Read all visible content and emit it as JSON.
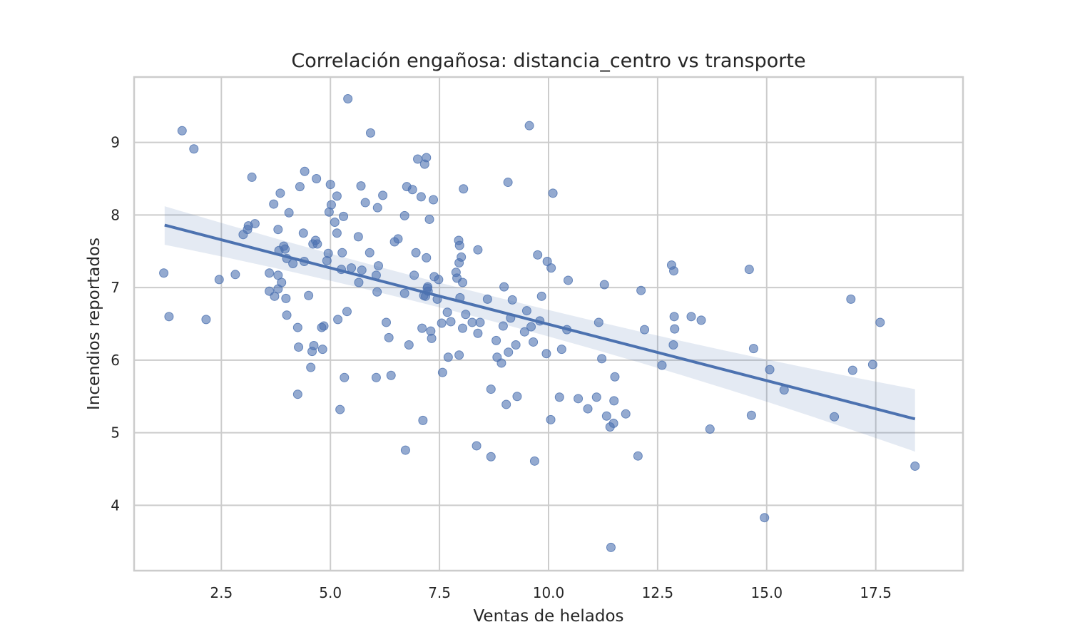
{
  "chart_data": {
    "type": "scatter",
    "title": "Correlación engañosa: distancia_centro vs transporte",
    "xlabel": "Ventas de helados",
    "ylabel": "Incendios reportados",
    "xlim": [
      0.5,
      19.5
    ],
    "ylim": [
      3.1,
      9.9
    ],
    "x_ticks": [
      2.5,
      5.0,
      7.5,
      10.0,
      12.5,
      15.0,
      17.5
    ],
    "x_tick_labels": [
      "2.5",
      "5.0",
      "7.5",
      "10.0",
      "12.5",
      "15.0",
      "17.5"
    ],
    "y_ticks": [
      4,
      5,
      6,
      7,
      8,
      9
    ],
    "y_tick_labels": [
      "4",
      "5",
      "6",
      "7",
      "8",
      "9"
    ],
    "grid": true,
    "color": "#4c72b0",
    "regression": {
      "x": [
        1.2,
        18.4
      ],
      "y": [
        7.86,
        5.19
      ],
      "ci_lower": [
        7.59,
        4.74
      ],
      "ci_upper": [
        8.12,
        5.6
      ],
      "ci_mid": {
        "x": 9.8,
        "lower": 6.36,
        "upper": 6.72
      }
    },
    "points": [
      [
        1.6,
        9.16
      ],
      [
        1.87,
        8.91
      ],
      [
        1.18,
        7.2
      ],
      [
        1.3,
        6.6
      ],
      [
        2.15,
        6.56
      ],
      [
        2.45,
        7.11
      ],
      [
        2.82,
        7.18
      ],
      [
        3.0,
        7.73
      ],
      [
        3.1,
        7.8
      ],
      [
        3.12,
        7.85
      ],
      [
        3.2,
        8.52
      ],
      [
        3.27,
        7.88
      ],
      [
        3.6,
        7.2
      ],
      [
        3.6,
        6.95
      ],
      [
        3.7,
        8.15
      ],
      [
        3.72,
        6.88
      ],
      [
        3.8,
        7.8
      ],
      [
        3.8,
        6.98
      ],
      [
        3.8,
        7.17
      ],
      [
        3.82,
        7.51
      ],
      [
        3.85,
        8.3
      ],
      [
        3.88,
        7.07
      ],
      [
        3.93,
        7.57
      ],
      [
        3.96,
        7.53
      ],
      [
        3.98,
        6.85
      ],
      [
        4.0,
        7.4
      ],
      [
        4.0,
        6.62
      ],
      [
        4.05,
        8.03
      ],
      [
        4.14,
        7.33
      ],
      [
        4.25,
        5.53
      ],
      [
        4.25,
        6.45
      ],
      [
        4.27,
        6.18
      ],
      [
        4.3,
        8.39
      ],
      [
        4.38,
        7.75
      ],
      [
        4.4,
        7.36
      ],
      [
        4.41,
        8.6
      ],
      [
        4.5,
        6.89
      ],
      [
        4.55,
        5.9
      ],
      [
        4.58,
        6.12
      ],
      [
        4.6,
        7.6
      ],
      [
        4.62,
        6.2
      ],
      [
        4.66,
        7.65
      ],
      [
        4.68,
        8.5
      ],
      [
        4.7,
        7.6
      ],
      [
        4.8,
        6.45
      ],
      [
        4.82,
        6.15
      ],
      [
        4.85,
        6.47
      ],
      [
        4.92,
        7.37
      ],
      [
        4.95,
        7.47
      ],
      [
        4.97,
        8.04
      ],
      [
        5.0,
        8.42
      ],
      [
        5.02,
        8.14
      ],
      [
        5.1,
        7.9
      ],
      [
        5.15,
        8.26
      ],
      [
        5.15,
        7.75
      ],
      [
        5.17,
        6.56
      ],
      [
        5.22,
        5.32
      ],
      [
        5.25,
        7.25
      ],
      [
        5.27,
        7.48
      ],
      [
        5.3,
        7.98
      ],
      [
        5.32,
        5.76
      ],
      [
        5.38,
        6.67
      ],
      [
        5.4,
        9.6
      ],
      [
        5.48,
        7.27
      ],
      [
        5.64,
        7.7
      ],
      [
        5.65,
        7.07
      ],
      [
        5.7,
        8.4
      ],
      [
        5.72,
        7.24
      ],
      [
        5.8,
        8.17
      ],
      [
        5.9,
        7.48
      ],
      [
        5.92,
        9.13
      ],
      [
        6.05,
        7.17
      ],
      [
        6.05,
        5.76
      ],
      [
        6.07,
        6.94
      ],
      [
        6.08,
        8.1
      ],
      [
        6.1,
        7.3
      ],
      [
        6.2,
        8.27
      ],
      [
        6.28,
        6.52
      ],
      [
        6.34,
        6.31
      ],
      [
        6.39,
        5.79
      ],
      [
        6.47,
        7.63
      ],
      [
        6.55,
        7.67
      ],
      [
        6.7,
        7.99
      ],
      [
        6.7,
        6.92
      ],
      [
        6.72,
        4.76
      ],
      [
        6.75,
        8.39
      ],
      [
        6.8,
        6.21
      ],
      [
        6.88,
        8.35
      ],
      [
        6.92,
        7.17
      ],
      [
        6.96,
        7.48
      ],
      [
        7.0,
        8.77
      ],
      [
        7.08,
        8.25
      ],
      [
        7.1,
        6.44
      ],
      [
        7.12,
        5.17
      ],
      [
        7.14,
        6.89
      ],
      [
        7.16,
        8.7
      ],
      [
        7.18,
        6.88
      ],
      [
        7.2,
        8.79
      ],
      [
        7.2,
        7.41
      ],
      [
        7.22,
        6.99
      ],
      [
        7.23,
        7.01
      ],
      [
        7.24,
        6.95
      ],
      [
        7.27,
        7.94
      ],
      [
        7.3,
        6.4
      ],
      [
        7.32,
        6.3
      ],
      [
        7.36,
        8.21
      ],
      [
        7.38,
        7.15
      ],
      [
        7.45,
        6.84
      ],
      [
        7.48,
        7.11
      ],
      [
        7.55,
        6.51
      ],
      [
        7.57,
        5.83
      ],
      [
        7.68,
        6.66
      ],
      [
        7.7,
        6.04
      ],
      [
        7.76,
        6.53
      ],
      [
        7.88,
        7.21
      ],
      [
        7.9,
        7.13
      ],
      [
        7.94,
        7.65
      ],
      [
        7.95,
        6.07
      ],
      [
        7.95,
        7.34
      ],
      [
        7.96,
        7.58
      ],
      [
        7.97,
        6.86
      ],
      [
        8.0,
        7.42
      ],
      [
        8.03,
        6.44
      ],
      [
        8.03,
        7.07
      ],
      [
        8.05,
        8.36
      ],
      [
        8.1,
        6.63
      ],
      [
        8.25,
        6.52
      ],
      [
        8.35,
        4.82
      ],
      [
        8.38,
        6.37
      ],
      [
        8.38,
        7.52
      ],
      [
        8.43,
        6.52
      ],
      [
        8.6,
        6.84
      ],
      [
        8.68,
        4.67
      ],
      [
        8.68,
        5.6
      ],
      [
        8.8,
        6.27
      ],
      [
        8.82,
        6.04
      ],
      [
        8.92,
        5.96
      ],
      [
        8.96,
        6.47
      ],
      [
        8.98,
        7.01
      ],
      [
        9.03,
        5.39
      ],
      [
        9.07,
        8.45
      ],
      [
        9.08,
        6.11
      ],
      [
        9.13,
        6.58
      ],
      [
        9.17,
        6.83
      ],
      [
        9.25,
        6.21
      ],
      [
        9.28,
        5.5
      ],
      [
        9.45,
        6.39
      ],
      [
        9.5,
        6.68
      ],
      [
        9.56,
        9.23
      ],
      [
        9.6,
        6.46
      ],
      [
        9.65,
        6.25
      ],
      [
        9.68,
        4.61
      ],
      [
        9.75,
        7.45
      ],
      [
        9.8,
        6.54
      ],
      [
        9.84,
        6.88
      ],
      [
        9.95,
        6.09
      ],
      [
        9.97,
        7.36
      ],
      [
        10.05,
        5.18
      ],
      [
        10.06,
        7.27
      ],
      [
        10.1,
        8.3
      ],
      [
        10.25,
        5.49
      ],
      [
        10.3,
        6.15
      ],
      [
        10.42,
        6.42
      ],
      [
        10.45,
        7.1
      ],
      [
        10.68,
        5.47
      ],
      [
        10.9,
        5.33
      ],
      [
        11.1,
        5.49
      ],
      [
        11.15,
        6.52
      ],
      [
        11.22,
        6.02
      ],
      [
        11.28,
        7.04
      ],
      [
        11.33,
        5.23
      ],
      [
        11.41,
        5.08
      ],
      [
        11.43,
        3.42
      ],
      [
        11.49,
        5.13
      ],
      [
        11.5,
        5.44
      ],
      [
        11.52,
        5.77
      ],
      [
        11.77,
        5.26
      ],
      [
        12.05,
        4.68
      ],
      [
        12.12,
        6.96
      ],
      [
        12.2,
        6.42
      ],
      [
        12.6,
        5.93
      ],
      [
        12.82,
        7.31
      ],
      [
        12.86,
        6.21
      ],
      [
        12.87,
        7.23
      ],
      [
        12.88,
        6.6
      ],
      [
        12.89,
        6.43
      ],
      [
        13.27,
        6.6
      ],
      [
        13.5,
        6.55
      ],
      [
        13.7,
        5.05
      ],
      [
        14.6,
        7.25
      ],
      [
        14.65,
        5.24
      ],
      [
        14.7,
        6.16
      ],
      [
        14.95,
        3.83
      ],
      [
        15.07,
        5.87
      ],
      [
        15.4,
        5.59
      ],
      [
        16.55,
        5.22
      ],
      [
        16.93,
        6.84
      ],
      [
        16.97,
        5.86
      ],
      [
        17.43,
        5.94
      ],
      [
        17.6,
        6.52
      ],
      [
        18.4,
        4.54
      ]
    ]
  }
}
